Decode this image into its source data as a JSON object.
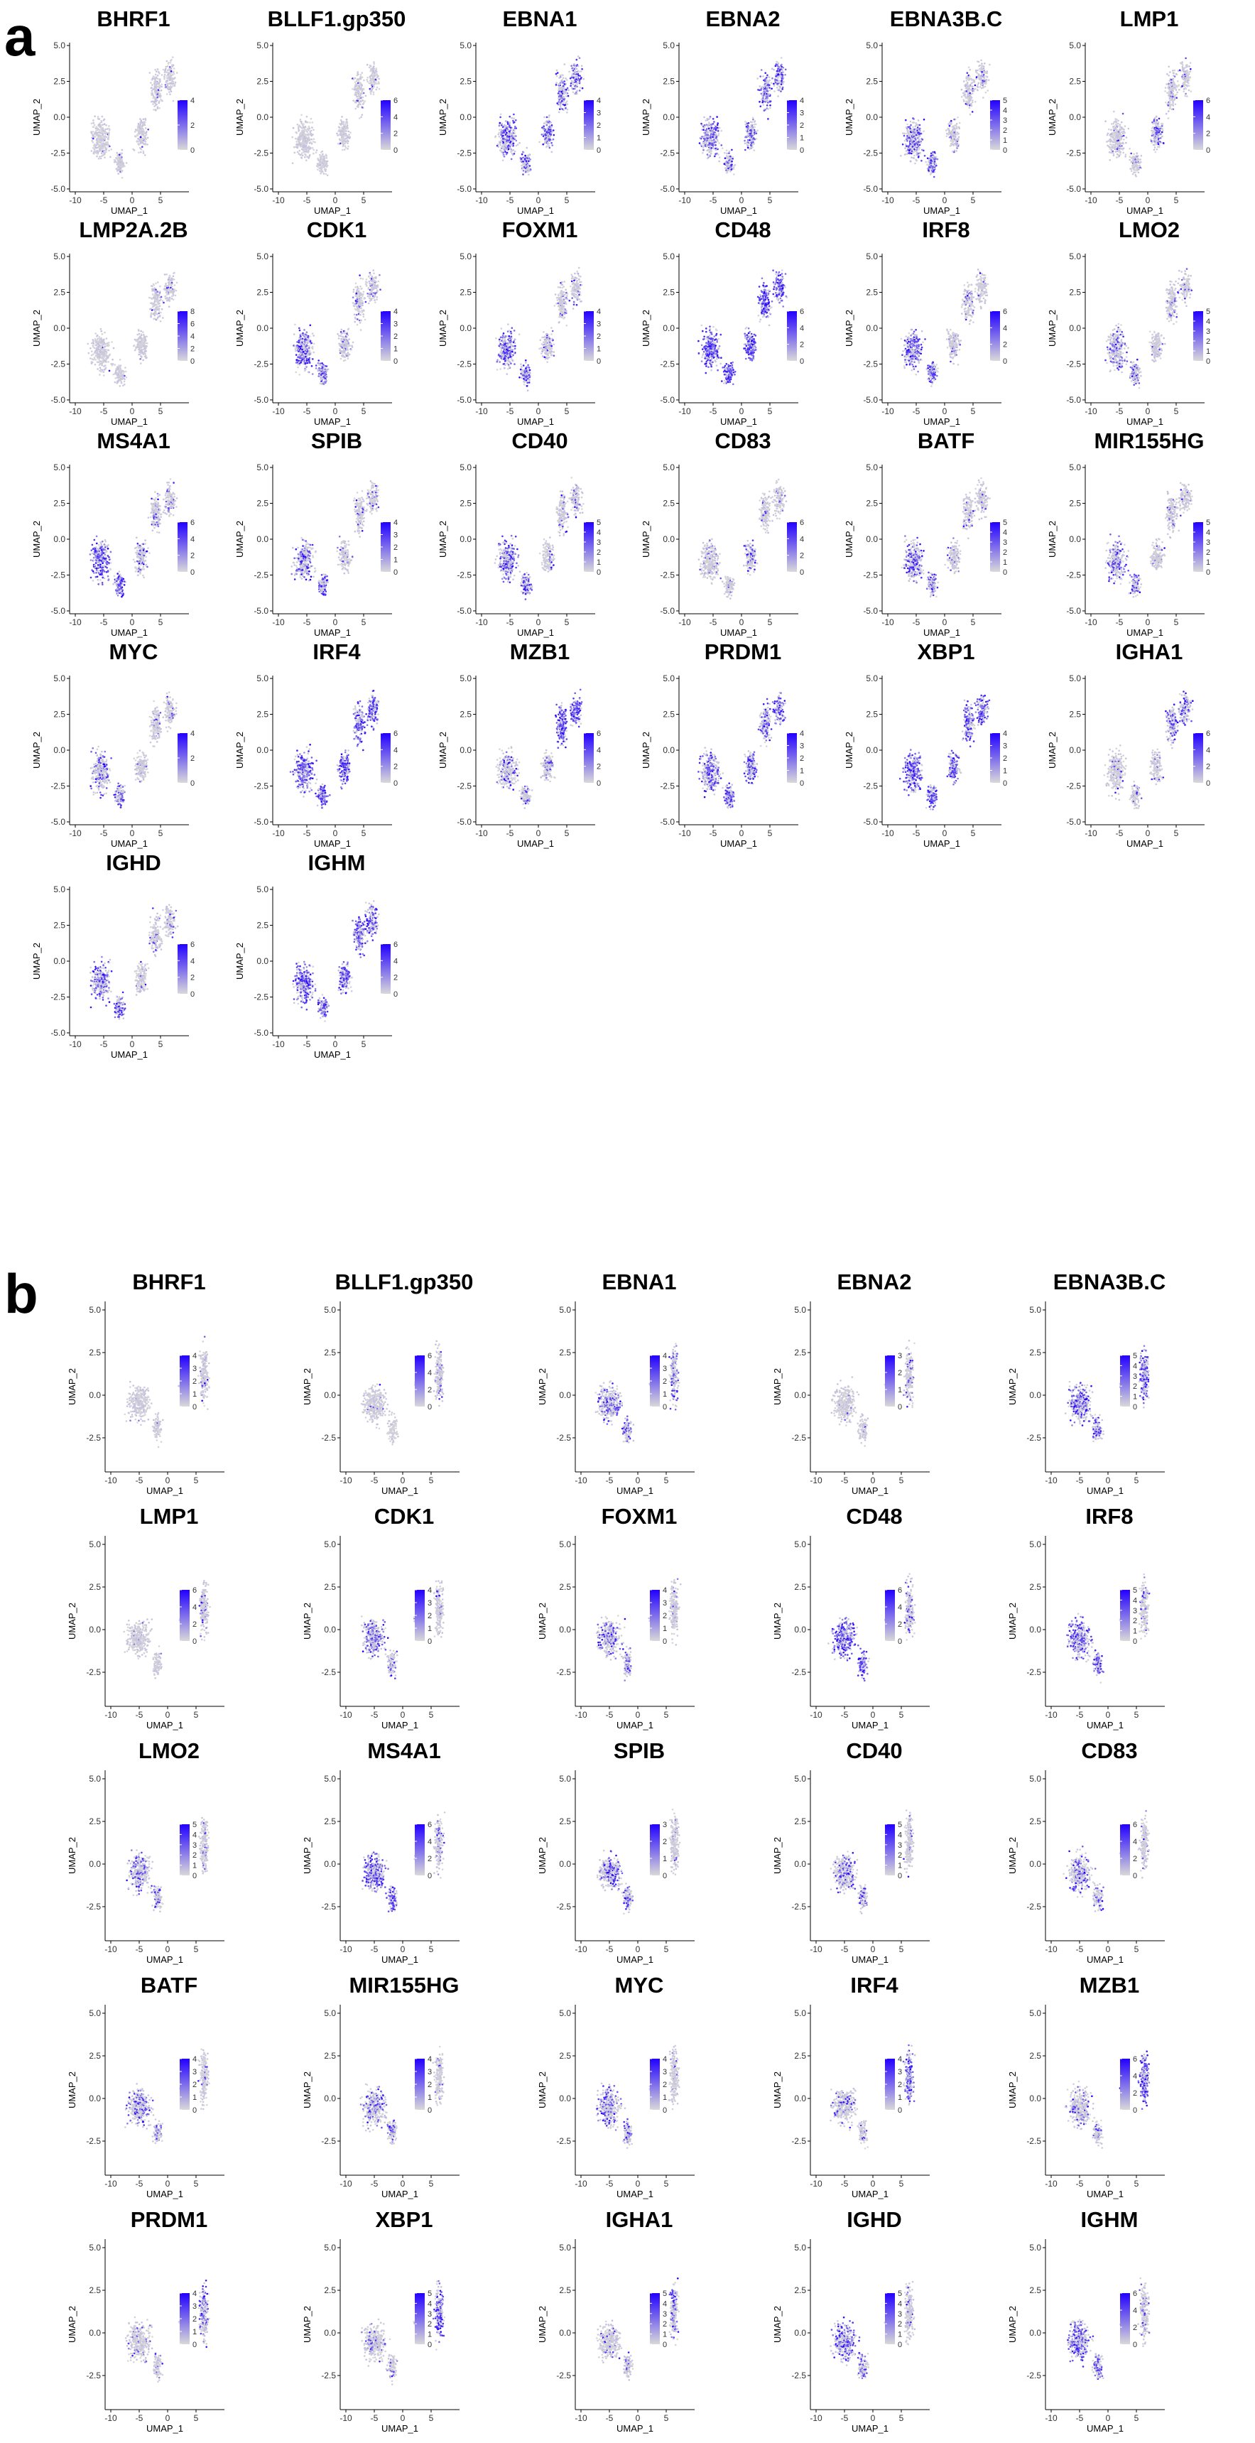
{
  "colors": {
    "low": "#d9d9d9",
    "high": "#2200ff",
    "background": "#ffffff",
    "text": "#000000"
  },
  "chart_data": [
    {
      "panel": "a",
      "type": "scatter",
      "xlabel": "UMAP_1",
      "ylabel": "UMAP_2",
      "xlim": [
        -11,
        10
      ],
      "ylim": [
        -5.2,
        5.2
      ],
      "xticks": [
        -10,
        -5,
        0,
        5
      ],
      "xtick_labels": [
        "-10",
        "-5",
        "0",
        "5"
      ],
      "yticks": [
        -5,
        -2.5,
        0,
        2.5,
        5
      ],
      "ytick_labels": [
        "-5.0",
        "-2.5",
        "0.0",
        "2.5",
        "5.0"
      ],
      "grid": false,
      "legend_position": "right",
      "plots": [
        {
          "title": "BHRF1",
          "scale_max": 4,
          "legend_ticks": [
            "0",
            "2",
            "4"
          ],
          "level": 0.08,
          "focus": "right"
        },
        {
          "title": "BLLF1.gp350",
          "scale_max": 6,
          "legend_ticks": [
            "0",
            "2",
            "4",
            "6"
          ],
          "level": 0.05,
          "focus": "right"
        },
        {
          "title": "EBNA1",
          "scale_max": 4,
          "legend_ticks": [
            "0",
            "1",
            "2",
            "3",
            "4"
          ],
          "level": 0.45,
          "focus": "all"
        },
        {
          "title": "EBNA2",
          "scale_max": 4,
          "legend_ticks": [
            "0",
            "1",
            "2",
            "3",
            "4"
          ],
          "level": 0.4,
          "focus": "all"
        },
        {
          "title": "EBNA3B.C",
          "scale_max": 5,
          "legend_ticks": [
            "0",
            "1",
            "2",
            "3",
            "4",
            "5"
          ],
          "level": 0.45,
          "focus": "left"
        },
        {
          "title": "LMP1",
          "scale_max": 6,
          "legend_ticks": [
            "0",
            "2",
            "4",
            "6"
          ],
          "level": 0.35,
          "focus": "center"
        },
        {
          "title": "LMP2A.2B",
          "scale_max": 8,
          "legend_ticks": [
            "0",
            "2",
            "4",
            "6",
            "8"
          ],
          "level": 0.05,
          "focus": "right"
        },
        {
          "title": "CDK1",
          "scale_max": 4,
          "legend_ticks": [
            "0",
            "1",
            "2",
            "3",
            "4"
          ],
          "level": 0.55,
          "focus": "left"
        },
        {
          "title": "FOXM1",
          "scale_max": 4,
          "legend_ticks": [
            "0",
            "1",
            "2",
            "3",
            "4"
          ],
          "level": 0.55,
          "focus": "left"
        },
        {
          "title": "CD48",
          "scale_max": 6,
          "legend_ticks": [
            "0",
            "2",
            "4",
            "6"
          ],
          "level": 0.7,
          "focus": "all"
        },
        {
          "title": "IRF8",
          "scale_max": 6,
          "legend_ticks": [
            "0",
            "2",
            "4",
            "6"
          ],
          "level": 0.55,
          "focus": "left"
        },
        {
          "title": "LMO2",
          "scale_max": 5,
          "legend_ticks": [
            "0",
            "1",
            "2",
            "3",
            "4",
            "5"
          ],
          "level": 0.35,
          "focus": "left"
        },
        {
          "title": "MS4A1",
          "scale_max": 6,
          "legend_ticks": [
            "0",
            "2",
            "4",
            "6"
          ],
          "level": 0.65,
          "focus": "left"
        },
        {
          "title": "SPIB",
          "scale_max": 4,
          "legend_ticks": [
            "0",
            "1",
            "2",
            "3",
            "4"
          ],
          "level": 0.4,
          "focus": "left"
        },
        {
          "title": "CD40",
          "scale_max": 5,
          "legend_ticks": [
            "0",
            "1",
            "2",
            "3",
            "4",
            "5"
          ],
          "level": 0.45,
          "focus": "left"
        },
        {
          "title": "CD83",
          "scale_max": 6,
          "legend_ticks": [
            "0",
            "2",
            "4",
            "6"
          ],
          "level": 0.3,
          "focus": "center"
        },
        {
          "title": "BATF",
          "scale_max": 5,
          "legend_ticks": [
            "0",
            "1",
            "2",
            "3",
            "4",
            "5"
          ],
          "level": 0.45,
          "focus": "left"
        },
        {
          "title": "MIR155HG",
          "scale_max": 5,
          "legend_ticks": [
            "0",
            "1",
            "2",
            "3",
            "4",
            "5"
          ],
          "level": 0.35,
          "focus": "left"
        },
        {
          "title": "MYC",
          "scale_max": 4,
          "legend_ticks": [
            "0",
            "2",
            "4"
          ],
          "level": 0.35,
          "focus": "left"
        },
        {
          "title": "IRF4",
          "scale_max": 6,
          "legend_ticks": [
            "0",
            "2",
            "4",
            "6"
          ],
          "level": 0.65,
          "focus": "all"
        },
        {
          "title": "MZB1",
          "scale_max": 6,
          "legend_ticks": [
            "0",
            "2",
            "4",
            "6"
          ],
          "level": 0.75,
          "focus": "right"
        },
        {
          "title": "PRDM1",
          "scale_max": 4,
          "legend_ticks": [
            "0",
            "1",
            "2",
            "3",
            "4"
          ],
          "level": 0.55,
          "focus": "all"
        },
        {
          "title": "XBP1",
          "scale_max": 4,
          "legend_ticks": [
            "0",
            "1",
            "2",
            "3",
            "4"
          ],
          "level": 0.6,
          "focus": "all"
        },
        {
          "title": "IGHA1",
          "scale_max": 6,
          "legend_ticks": [
            "0",
            "2",
            "4",
            "6"
          ],
          "level": 0.4,
          "focus": "right"
        },
        {
          "title": "IGHD",
          "scale_max": 6,
          "legend_ticks": [
            "0",
            "2",
            "4",
            "6"
          ],
          "level": 0.5,
          "focus": "left"
        },
        {
          "title": "IGHM",
          "scale_max": 6,
          "legend_ticks": [
            "0",
            "2",
            "4",
            "6"
          ],
          "level": 0.6,
          "focus": "all"
        }
      ]
    },
    {
      "panel": "b",
      "type": "scatter",
      "xlabel": "UMAP_1",
      "ylabel": "UMAP_2",
      "xlim": [
        -11,
        10
      ],
      "ylim": [
        -4.5,
        5.5
      ],
      "xticks": [
        -10,
        -5,
        0,
        5
      ],
      "xtick_labels": [
        "-10",
        "-5",
        "0",
        "5"
      ],
      "yticks": [
        -2.5,
        0,
        2.5,
        5
      ],
      "ytick_labels": [
        "-2.5",
        "0.0",
        "2.5",
        "5.0"
      ],
      "grid": false,
      "legend_position": "right",
      "plots": [
        {
          "title": "BHRF1",
          "scale_max": 4,
          "legend_ticks": [
            "0",
            "1",
            "2",
            "3",
            "4"
          ],
          "level": 0.1,
          "focus": "right"
        },
        {
          "title": "BLLF1.gp350",
          "scale_max": 6,
          "legend_ticks": [
            "0",
            "2",
            "4",
            "6"
          ],
          "level": 0.1,
          "focus": "right"
        },
        {
          "title": "EBNA1",
          "scale_max": 4,
          "legend_ticks": [
            "0",
            "1",
            "2",
            "3",
            "4"
          ],
          "level": 0.35,
          "focus": "all"
        },
        {
          "title": "EBNA2",
          "scale_max": 3,
          "legend_ticks": [
            "0",
            "1",
            "2",
            "3"
          ],
          "level": 0.12,
          "focus": "right"
        },
        {
          "title": "EBNA3B.C",
          "scale_max": 5,
          "legend_ticks": [
            "0",
            "1",
            "2",
            "3",
            "4",
            "5"
          ],
          "level": 0.45,
          "focus": "all"
        },
        {
          "title": "LMP1",
          "scale_max": 6,
          "legend_ticks": [
            "0",
            "2",
            "4",
            "6"
          ],
          "level": 0.12,
          "focus": "right"
        },
        {
          "title": "CDK1",
          "scale_max": 4,
          "legend_ticks": [
            "0",
            "1",
            "2",
            "3",
            "4"
          ],
          "level": 0.4,
          "focus": "left"
        },
        {
          "title": "FOXM1",
          "scale_max": 4,
          "legend_ticks": [
            "0",
            "1",
            "2",
            "3",
            "4"
          ],
          "level": 0.35,
          "focus": "left"
        },
        {
          "title": "CD48",
          "scale_max": 6,
          "legend_ticks": [
            "0",
            "2",
            "4",
            "6"
          ],
          "level": 0.6,
          "focus": "left"
        },
        {
          "title": "IRF8",
          "scale_max": 5,
          "legend_ticks": [
            "0",
            "1",
            "2",
            "3",
            "4",
            "5"
          ],
          "level": 0.5,
          "focus": "left"
        },
        {
          "title": "LMO2",
          "scale_max": 5,
          "legend_ticks": [
            "0",
            "1",
            "2",
            "3",
            "4",
            "5"
          ],
          "level": 0.3,
          "focus": "left"
        },
        {
          "title": "MS4A1",
          "scale_max": 6,
          "legend_ticks": [
            "0",
            "2",
            "4",
            "6"
          ],
          "level": 0.55,
          "focus": "left"
        },
        {
          "title": "SPIB",
          "scale_max": 3,
          "legend_ticks": [
            "0",
            "1",
            "2",
            "3"
          ],
          "level": 0.3,
          "focus": "left"
        },
        {
          "title": "CD40",
          "scale_max": 5,
          "legend_ticks": [
            "0",
            "1",
            "2",
            "3",
            "4",
            "5"
          ],
          "level": 0.3,
          "focus": "left"
        },
        {
          "title": "CD83",
          "scale_max": 6,
          "legend_ticks": [
            "0",
            "2",
            "4",
            "6"
          ],
          "level": 0.25,
          "focus": "left"
        },
        {
          "title": "BATF",
          "scale_max": 4,
          "legend_ticks": [
            "0",
            "1",
            "2",
            "3",
            "4"
          ],
          "level": 0.35,
          "focus": "left"
        },
        {
          "title": "MIR155HG",
          "scale_max": 4,
          "legend_ticks": [
            "0",
            "1",
            "2",
            "3",
            "4"
          ],
          "level": 0.3,
          "focus": "left"
        },
        {
          "title": "MYC",
          "scale_max": 4,
          "legend_ticks": [
            "0",
            "1",
            "2",
            "3",
            "4"
          ],
          "level": 0.3,
          "focus": "left"
        },
        {
          "title": "IRF4",
          "scale_max": 4,
          "legend_ticks": [
            "0",
            "1",
            "2",
            "3",
            "4"
          ],
          "level": 0.5,
          "focus": "right"
        },
        {
          "title": "MZB1",
          "scale_max": 6,
          "legend_ticks": [
            "0",
            "2",
            "4",
            "6"
          ],
          "level": 0.65,
          "focus": "right"
        },
        {
          "title": "PRDM1",
          "scale_max": 4,
          "legend_ticks": [
            "0",
            "1",
            "2",
            "3",
            "4"
          ],
          "level": 0.4,
          "focus": "right"
        },
        {
          "title": "XBP1",
          "scale_max": 5,
          "legend_ticks": [
            "0",
            "1",
            "2",
            "3",
            "4",
            "5"
          ],
          "level": 0.5,
          "focus": "right"
        },
        {
          "title": "IGHA1",
          "scale_max": 5,
          "legend_ticks": [
            "0",
            "1",
            "2",
            "3",
            "4",
            "5"
          ],
          "level": 0.3,
          "focus": "right"
        },
        {
          "title": "IGHD",
          "scale_max": 5,
          "legend_ticks": [
            "0",
            "1",
            "2",
            "3",
            "4",
            "5"
          ],
          "level": 0.45,
          "focus": "left"
        },
        {
          "title": "IGHM",
          "scale_max": 6,
          "legend_ticks": [
            "0",
            "2",
            "4",
            "6"
          ],
          "level": 0.5,
          "focus": "left"
        }
      ]
    }
  ],
  "figure": {
    "panel_a_label": "a",
    "panel_b_label": "b"
  }
}
